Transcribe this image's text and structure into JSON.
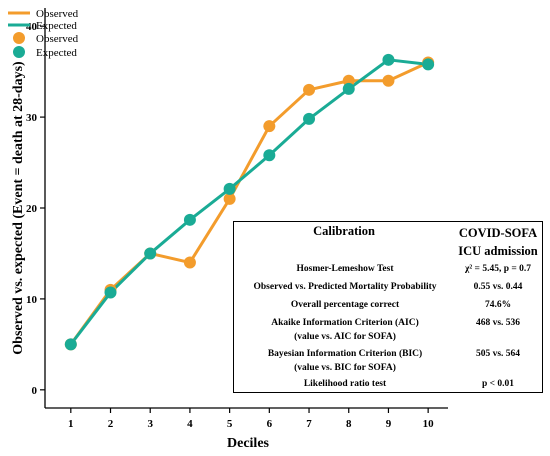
{
  "chart_data": {
    "type": "line",
    "x": [
      1,
      2,
      3,
      4,
      5,
      6,
      7,
      8,
      9,
      10
    ],
    "xlabel": "Deciles",
    "ylabel": "Observed vs. expected (Event = death at 28-days)",
    "ylim": [
      -2,
      42
    ],
    "yticks": [
      0,
      10,
      20,
      30,
      40
    ],
    "xticks": [
      1,
      2,
      3,
      4,
      5,
      6,
      7,
      8,
      9,
      10
    ],
    "series": [
      {
        "name": "Observed",
        "color": "#f39c2c",
        "values": [
          5,
          11,
          15,
          14,
          21,
          29,
          33,
          34,
          34,
          36
        ]
      },
      {
        "name": "Expected",
        "color": "#1aab95",
        "values": [
          5,
          10.7,
          15,
          18.7,
          22.1,
          25.8,
          29.8,
          33.1,
          36.3,
          35.8
        ]
      }
    ],
    "legend": {
      "placement": "top-left",
      "entries": [
        "Observed",
        "Expected",
        "Observed",
        "Expected"
      ]
    }
  },
  "table": {
    "header_left": "Calibration",
    "header_right": "COVID-SOFA ICU admission",
    "rows": [
      {
        "label": "Hosmer-Lemeshow Test",
        "value": "χ² = 5.45, p = 0.7"
      },
      {
        "label": "Observed vs. Predicted Mortality Probability",
        "value": "0.55 vs. 0.44"
      },
      {
        "label": "Overall percentage correct",
        "value": "74.6%"
      },
      {
        "label": "Akaike Information Criterion (AIC)",
        "label2": "(value vs. AIC for SOFA)",
        "value": "468 vs. 536"
      },
      {
        "label": "Bayesian Information Criterion (BIC)",
        "label2": "(value vs. BIC for SOFA)",
        "value": "505 vs. 564"
      },
      {
        "label": "Likelihood ratio test",
        "value": "p < 0.01"
      }
    ]
  }
}
